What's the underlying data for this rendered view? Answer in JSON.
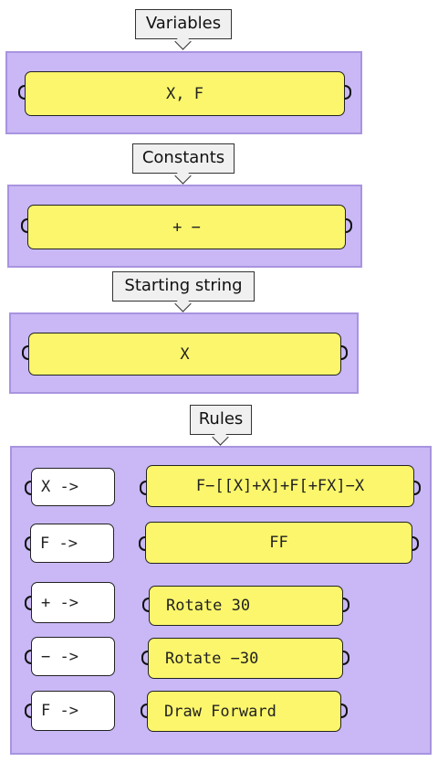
{
  "sections": {
    "variables": {
      "label": "Variables",
      "value": "X, F"
    },
    "constants": {
      "label": "Constants",
      "value": "+ −"
    },
    "start": {
      "label": "Starting string",
      "value": "X"
    },
    "rules": {
      "label": "Rules",
      "items": [
        {
          "input": "X ->",
          "output": "F−[[X]+X]+F[+FX]−X"
        },
        {
          "input": "F ->",
          "output": "FF"
        },
        {
          "input": "+ ->",
          "output": "Rotate 30"
        },
        {
          "input": "− ->",
          "output": "Rotate −30"
        },
        {
          "input": "F ->",
          "output": "Draw Forward"
        }
      ]
    }
  },
  "colors": {
    "panel": "#c9b8f5",
    "box": "#fbf66b",
    "callout": "#f0f0f0"
  }
}
